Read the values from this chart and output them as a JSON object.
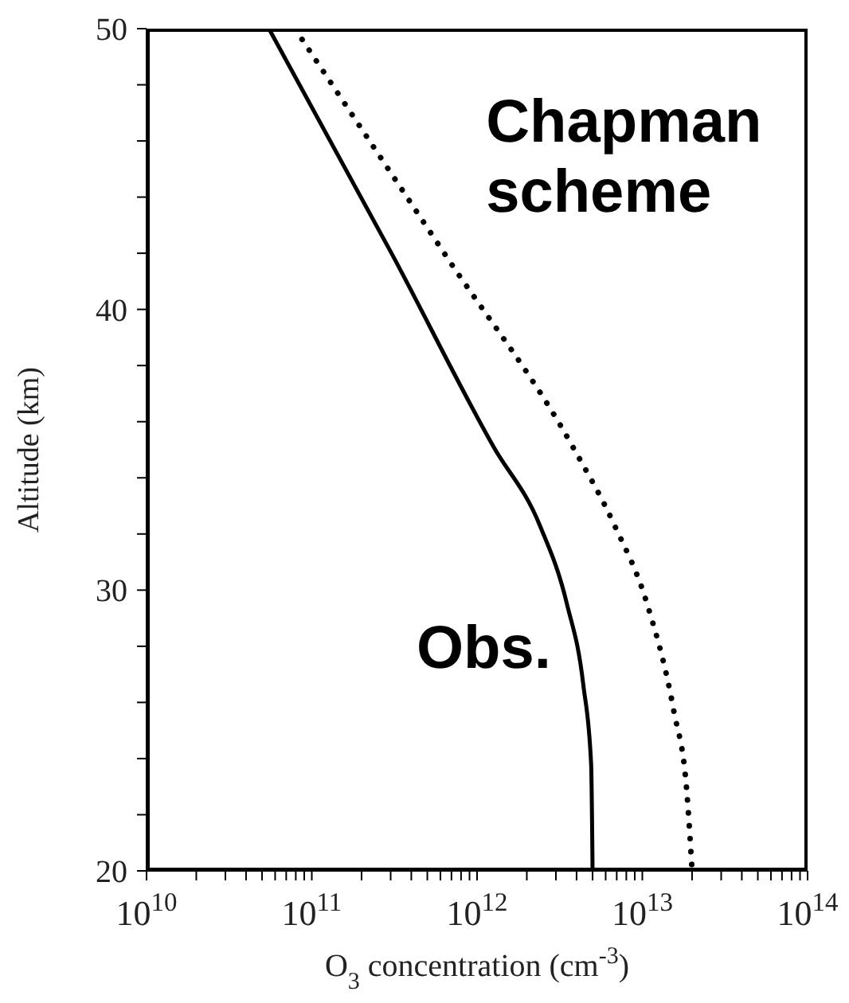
{
  "chart_data": {
    "type": "line",
    "xlabel": "O$_{3}$ concentration (cm$^{-3}$)",
    "ylabel": "Altitude (km)",
    "log": "x",
    "xlim": [
      10000000000.0,
      100000000000000.0
    ],
    "xticks": [
      {
        "value": 10000000000.0,
        "label": "10$^{10}$"
      },
      {
        "value": 20000000000.0,
        "label": null
      },
      {
        "value": 30000000000.0,
        "label": null
      },
      {
        "value": 40000000000.0,
        "label": null
      },
      {
        "value": 50000000000.0,
        "label": null
      },
      {
        "value": 60000000000.0,
        "label": null
      },
      {
        "value": 70000000000.0,
        "label": null
      },
      {
        "value": 80000000000.0,
        "label": null
      },
      {
        "value": 90000000000.0,
        "label": null
      },
      {
        "value": 100000000000.0,
        "label": "10$^{11}$"
      },
      {
        "value": 200000000000.0,
        "label": null
      },
      {
        "value": 300000000000.0,
        "label": null
      },
      {
        "value": 400000000000.0,
        "label": null
      },
      {
        "value": 500000000000.0,
        "label": null
      },
      {
        "value": 600000000000.0,
        "label": null
      },
      {
        "value": 700000000000.0,
        "label": null
      },
      {
        "value": 800000000000.0,
        "label": null
      },
      {
        "value": 900000000000.0,
        "label": null
      },
      {
        "value": 1000000000000.0,
        "label": "10$^{12}$"
      },
      {
        "value": 2000000000000.0,
        "label": null
      },
      {
        "value": 3000000000000.0,
        "label": null
      },
      {
        "value": 4000000000000.0,
        "label": null
      },
      {
        "value": 5000000000000.0,
        "label": null
      },
      {
        "value": 6000000000000.0,
        "label": null
      },
      {
        "value": 7000000000000.0,
        "label": null
      },
      {
        "value": 8000000000000.0,
        "label": null
      },
      {
        "value": 9000000000000.0,
        "label": null
      },
      {
        "value": 10000000000000.0,
        "label": "10$^{13}$"
      },
      {
        "value": 20000000000000.0,
        "label": null
      },
      {
        "value": 30000000000000.0,
        "label": null
      },
      {
        "value": 40000000000000.0,
        "label": null
      },
      {
        "value": 50000000000000.0,
        "label": null
      },
      {
        "value": 60000000000000.0,
        "label": null
      },
      {
        "value": 70000000000000.0,
        "label": null
      },
      {
        "value": 80000000000000.0,
        "label": null
      },
      {
        "value": 90000000000000.0,
        "label": null
      },
      {
        "value": 100000000000000.0,
        "label": "10$^{14}$"
      }
    ],
    "ylim": [
      20,
      50
    ],
    "yticks": [
      20,
      {
        "value": 22,
        "label": null
      },
      {
        "value": 24,
        "label": null
      },
      {
        "value": 26,
        "label": null
      },
      {
        "value": 28,
        "label": null
      },
      30,
      {
        "value": 32,
        "label": null
      },
      {
        "value": 34,
        "label": null
      },
      {
        "value": 36,
        "label": null
      },
      {
        "value": 38,
        "label": null
      },
      40,
      {
        "value": 42,
        "label": null
      },
      {
        "value": 44,
        "label": null
      },
      {
        "value": 46,
        "label": null
      },
      {
        "value": 48,
        "label": null
      },
      50
    ],
    "grid": false,
    "series": [
      {
        "name": "Obs.",
        "color": "#000000",
        "line_style": "solid",
        "x": [
          55000000000.0,
          310000000000.0,
          1260000000000.0,
          2400000000000.0,
          3500000000000.0,
          4400000000000.0,
          4900000000000.0,
          5000000000000.0
        ],
        "values": [
          50,
          41.9,
          35.1,
          32.3,
          29.5,
          26.6,
          23.8,
          20
        ]
      },
      {
        "name": "Chapman scheme",
        "color": "#000000",
        "line_style": "dotted",
        "x": [
          79000000000.0,
          650000000000.0,
          3800000000000.0,
          6800000000000.0,
          10700000000000.0,
          15500000000000.0,
          18600000000000.0,
          20000000000000.0
        ],
        "values": [
          50,
          41.9,
          35.1,
          32.3,
          29.5,
          25.7,
          22.8,
          20
        ]
      }
    ]
  }
}
